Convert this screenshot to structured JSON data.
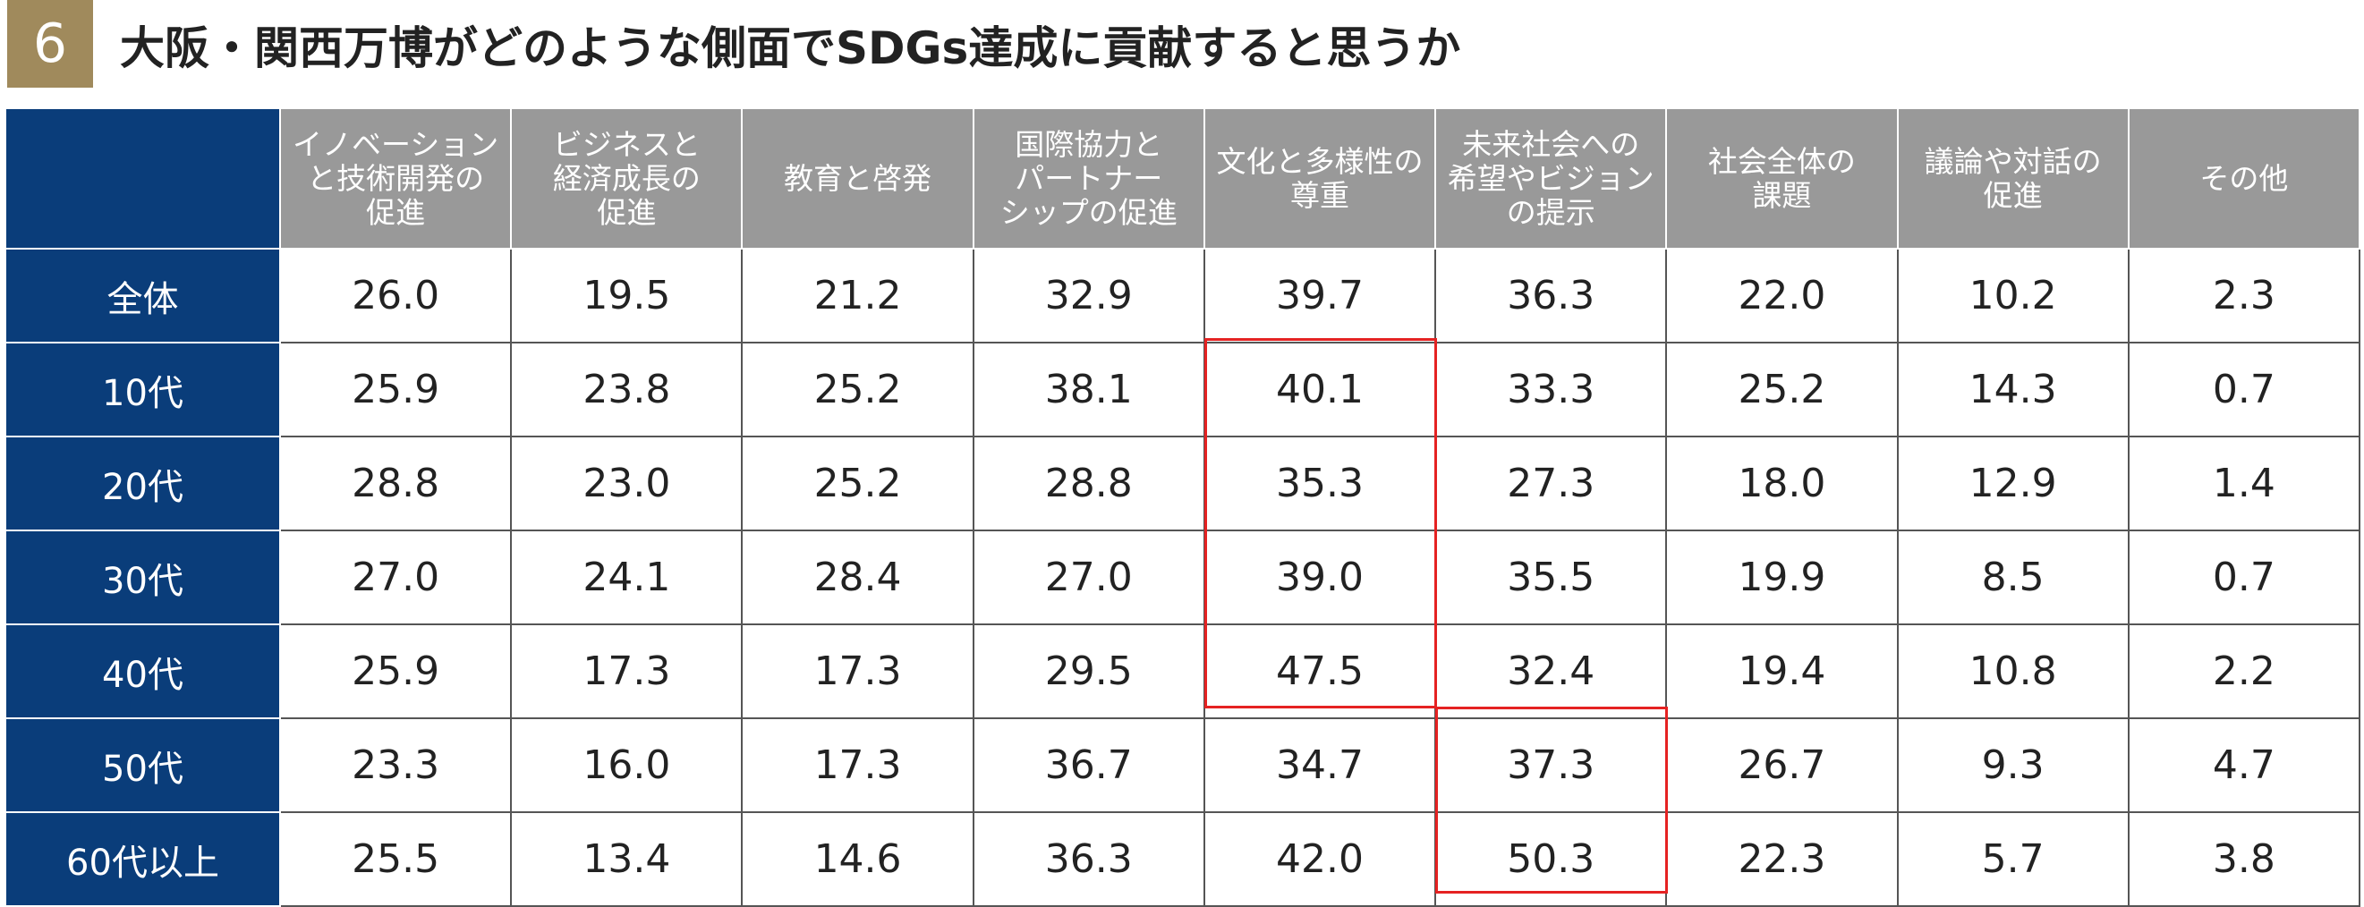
{
  "header": {
    "badge": "6",
    "title": "大阪・関西万博がどのような側面でSDGs達成に貢献すると思うか"
  },
  "table": {
    "columns": [
      "イノベーション\nと技術開発の\n促進",
      "ビジネスと\n経済成長の\n促進",
      "教育と啓発",
      "国際協力と\nパートナー\nシップの促進",
      "文化と多様性の\n尊重",
      "未来社会への\n希望やビジョン\nの提示",
      "社会全体の\n課題",
      "議論や対話の\n促進",
      "その他"
    ],
    "rows": [
      {
        "label": "全体",
        "values": [
          "26.0",
          "19.5",
          "21.2",
          "32.9",
          "39.7",
          "36.3",
          "22.0",
          "10.2",
          "2.3"
        ]
      },
      {
        "label": "10代",
        "values": [
          "25.9",
          "23.8",
          "25.2",
          "38.1",
          "40.1",
          "33.3",
          "25.2",
          "14.3",
          "0.7"
        ]
      },
      {
        "label": "20代",
        "values": [
          "28.8",
          "23.0",
          "25.2",
          "28.8",
          "35.3",
          "27.3",
          "18.0",
          "12.9",
          "1.4"
        ]
      },
      {
        "label": "30代",
        "values": [
          "27.0",
          "24.1",
          "28.4",
          "27.0",
          "39.0",
          "35.5",
          "19.9",
          "8.5",
          "0.7"
        ]
      },
      {
        "label": "40代",
        "values": [
          "25.9",
          "17.3",
          "17.3",
          "29.5",
          "47.5",
          "32.4",
          "19.4",
          "10.8",
          "2.2"
        ]
      },
      {
        "label": "50代",
        "values": [
          "23.3",
          "16.0",
          "17.3",
          "36.7",
          "34.7",
          "37.3",
          "26.7",
          "9.3",
          "4.7"
        ]
      },
      {
        "label": "60代以上",
        "values": [
          "25.5",
          "13.4",
          "14.6",
          "36.3",
          "42.0",
          "50.3",
          "22.3",
          "5.7",
          "3.8"
        ]
      }
    ]
  }
}
